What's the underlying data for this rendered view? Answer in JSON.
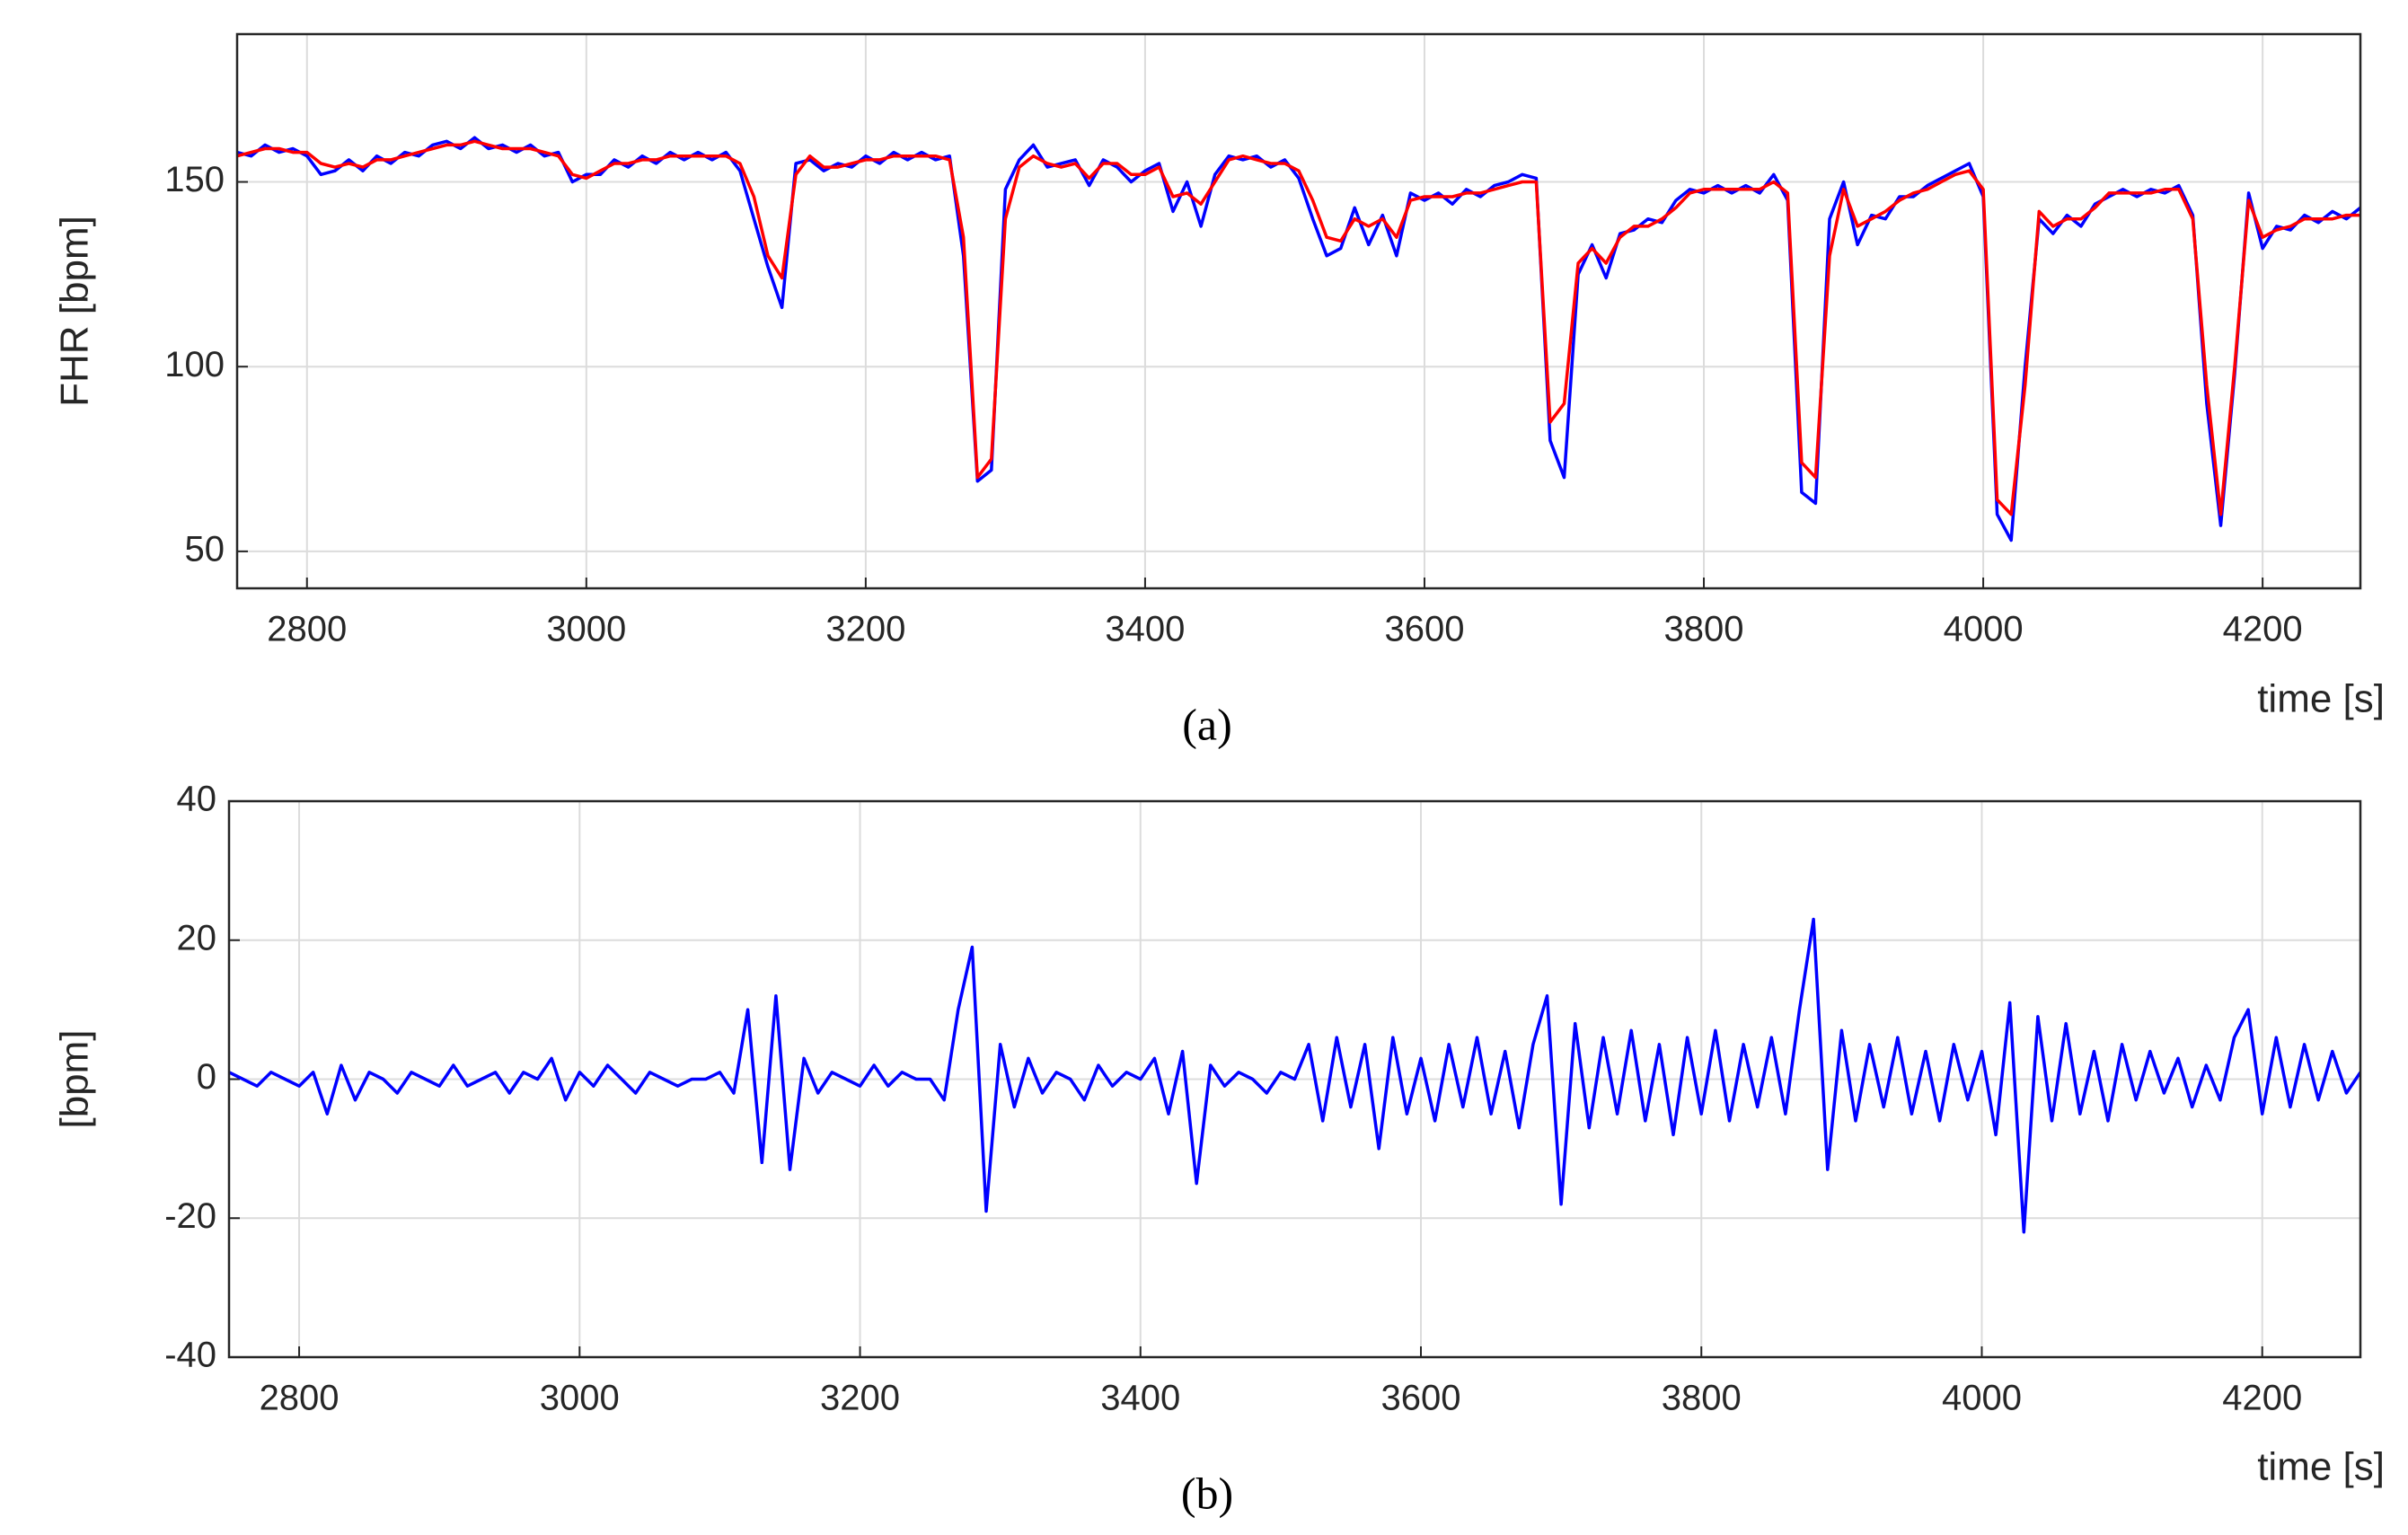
{
  "chart_data": [
    {
      "type": "line",
      "ylabel": "FHR [bpm]",
      "xlabel": "time [s]",
      "caption": "(a)",
      "x": [
        2750,
        2760,
        2770,
        2780,
        2790,
        2800,
        2810,
        2820,
        2830,
        2840,
        2850,
        2860,
        2870,
        2880,
        2890,
        2900,
        2910,
        2920,
        2930,
        2940,
        2950,
        2960,
        2970,
        2980,
        2990,
        3000,
        3010,
        3020,
        3030,
        3040,
        3050,
        3060,
        3070,
        3080,
        3090,
        3100,
        3110,
        3120,
        3130,
        3140,
        3150,
        3160,
        3170,
        3180,
        3190,
        3200,
        3210,
        3220,
        3230,
        3240,
        3250,
        3260,
        3270,
        3280,
        3290,
        3300,
        3310,
        3320,
        3330,
        3340,
        3350,
        3360,
        3370,
        3380,
        3390,
        3400,
        3410,
        3420,
        3430,
        3440,
        3450,
        3460,
        3470,
        3480,
        3490,
        3500,
        3510,
        3520,
        3530,
        3540,
        3550,
        3560,
        3570,
        3580,
        3590,
        3600,
        3610,
        3620,
        3630,
        3640,
        3650,
        3660,
        3670,
        3680,
        3690,
        3700,
        3710,
        3720,
        3730,
        3740,
        3750,
        3760,
        3770,
        3780,
        3790,
        3800,
        3810,
        3820,
        3830,
        3840,
        3850,
        3860,
        3870,
        3880,
        3890,
        3900,
        3910,
        3920,
        3930,
        3940,
        3950,
        3960,
        3970,
        3980,
        3990,
        4000,
        4010,
        4020,
        4030,
        4040,
        4050,
        4060,
        4070,
        4080,
        4090,
        4100,
        4110,
        4120,
        4130,
        4140,
        4150,
        4160,
        4170,
        4180,
        4190,
        4200,
        4210,
        4220,
        4230,
        4240,
        4250,
        4260,
        4270
      ],
      "series": [
        {
          "color": "#0000ff",
          "values": [
            158,
            157,
            160,
            158,
            159,
            157,
            152,
            153,
            156,
            153,
            157,
            155,
            158,
            157,
            160,
            161,
            159,
            162,
            159,
            160,
            158,
            160,
            157,
            158,
            150,
            152,
            152,
            156,
            154,
            157,
            155,
            158,
            156,
            158,
            156,
            158,
            153,
            140,
            127,
            116,
            155,
            156,
            153,
            155,
            154,
            157,
            155,
            158,
            156,
            158,
            156,
            157,
            130,
            69,
            72,
            148,
            156,
            160,
            154,
            155,
            156,
            149,
            156,
            154,
            150,
            153,
            155,
            142,
            150,
            138,
            152,
            157,
            156,
            157,
            154,
            156,
            151,
            140,
            130,
            132,
            143,
            133,
            141,
            130,
            147,
            145,
            147,
            144,
            148,
            146,
            149,
            150,
            152,
            151,
            80,
            70,
            125,
            133,
            124,
            136,
            137,
            140,
            139,
            145,
            148,
            147,
            149,
            147,
            149,
            147,
            152,
            145,
            66,
            63,
            140,
            150,
            133,
            141,
            140,
            146,
            146,
            149,
            151,
            153,
            155,
            146,
            60,
            53,
            100,
            140,
            136,
            141,
            138,
            144,
            146,
            148,
            146,
            148,
            147,
            149,
            141,
            90,
            57,
            98,
            147,
            132,
            138,
            137,
            141,
            139,
            142,
            140,
            143
          ]
        },
        {
          "color": "#ff0000",
          "values": [
            157,
            158,
            159,
            159,
            158,
            158,
            155,
            154,
            155,
            154,
            156,
            156,
            157,
            158,
            159,
            160,
            160,
            161,
            160,
            159,
            159,
            159,
            158,
            157,
            152,
            151,
            153,
            155,
            155,
            156,
            156,
            157,
            157,
            157,
            157,
            157,
            155,
            146,
            130,
            124,
            152,
            157,
            154,
            154,
            155,
            156,
            156,
            157,
            157,
            157,
            157,
            156,
            135,
            70,
            75,
            140,
            154,
            157,
            155,
            154,
            155,
            151,
            155,
            155,
            152,
            152,
            154,
            146,
            147,
            144,
            150,
            156,
            157,
            156,
            155,
            155,
            153,
            145,
            135,
            134,
            140,
            138,
            140,
            135,
            145,
            146,
            146,
            146,
            147,
            147,
            148,
            149,
            150,
            150,
            85,
            90,
            128,
            132,
            128,
            135,
            138,
            138,
            140,
            143,
            147,
            148,
            148,
            148,
            148,
            148,
            150,
            147,
            74,
            70,
            130,
            148,
            138,
            140,
            142,
            145,
            147,
            148,
            150,
            152,
            153,
            148,
            64,
            60,
            95,
            142,
            138,
            140,
            140,
            143,
            147,
            147,
            147,
            147,
            148,
            148,
            140,
            95,
            60,
            100,
            145,
            135,
            137,
            138,
            140,
            140,
            140,
            141,
            141
          ]
        }
      ],
      "xlim": [
        2750,
        4270
      ],
      "xticks": [
        2800,
        3000,
        3200,
        3400,
        3600,
        3800,
        4000,
        4200
      ],
      "ylim": [
        40,
        190
      ],
      "yticks": [
        50,
        100,
        150
      ],
      "grid": true
    },
    {
      "type": "line",
      "ylabel": "[bpm]",
      "xlabel": "time [s]",
      "caption": "(b)",
      "x": [
        2750,
        2760,
        2770,
        2780,
        2790,
        2800,
        2810,
        2820,
        2830,
        2840,
        2850,
        2860,
        2870,
        2880,
        2890,
        2900,
        2910,
        2920,
        2930,
        2940,
        2950,
        2960,
        2970,
        2980,
        2990,
        3000,
        3010,
        3020,
        3030,
        3040,
        3050,
        3060,
        3070,
        3080,
        3090,
        3100,
        3110,
        3120,
        3130,
        3140,
        3150,
        3160,
        3170,
        3180,
        3190,
        3200,
        3210,
        3220,
        3230,
        3240,
        3250,
        3260,
        3270,
        3280,
        3290,
        3300,
        3310,
        3320,
        3330,
        3340,
        3350,
        3360,
        3370,
        3380,
        3390,
        3400,
        3410,
        3420,
        3430,
        3440,
        3450,
        3460,
        3470,
        3480,
        3490,
        3500,
        3510,
        3520,
        3530,
        3540,
        3550,
        3560,
        3570,
        3580,
        3590,
        3600,
        3610,
        3620,
        3630,
        3640,
        3650,
        3660,
        3670,
        3680,
        3690,
        3700,
        3710,
        3720,
        3730,
        3740,
        3750,
        3760,
        3770,
        3780,
        3790,
        3800,
        3810,
        3820,
        3830,
        3840,
        3850,
        3860,
        3870,
        3880,
        3890,
        3900,
        3910,
        3920,
        3930,
        3940,
        3950,
        3960,
        3970,
        3980,
        3990,
        4000,
        4010,
        4020,
        4030,
        4040,
        4050,
        4060,
        4070,
        4080,
        4090,
        4100,
        4110,
        4120,
        4130,
        4140,
        4150,
        4160,
        4170,
        4180,
        4190,
        4200,
        4210,
        4220,
        4230,
        4240,
        4250,
        4260,
        4270
      ],
      "series": [
        {
          "color": "#0000ff",
          "values": [
            1,
            0,
            -1,
            1,
            0,
            -1,
            1,
            -5,
            2,
            -3,
            1,
            0,
            -2,
            1,
            0,
            -1,
            2,
            -1,
            0,
            1,
            -2,
            1,
            0,
            3,
            -3,
            1,
            -1,
            2,
            0,
            -2,
            1,
            0,
            -1,
            0,
            0,
            1,
            -2,
            10,
            -12,
            12,
            -13,
            3,
            -2,
            1,
            0,
            -1,
            2,
            -1,
            1,
            0,
            0,
            -3,
            10,
            19,
            -19,
            5,
            -4,
            3,
            -2,
            1,
            0,
            -3,
            2,
            -1,
            1,
            0,
            3,
            -5,
            4,
            -15,
            2,
            -1,
            1,
            0,
            -2,
            1,
            0,
            5,
            -6,
            6,
            -4,
            5,
            -10,
            6,
            -5,
            3,
            -6,
            5,
            -4,
            6,
            -5,
            4,
            -7,
            5,
            12,
            -18,
            8,
            -7,
            6,
            -5,
            7,
            -6,
            5,
            -8,
            6,
            -5,
            7,
            -6,
            5,
            -4,
            6,
            -5,
            10,
            23,
            -13,
            7,
            -6,
            5,
            -4,
            6,
            -5,
            4,
            -6,
            5,
            -3,
            4,
            -8,
            11,
            -22,
            9,
            -6,
            8,
            -5,
            4,
            -6,
            5,
            -3,
            4,
            -2,
            3,
            -4,
            2,
            -3,
            6,
            10,
            -5,
            6,
            -4,
            5,
            -3,
            4,
            -2,
            1
          ]
        }
      ],
      "xlim": [
        2750,
        4270
      ],
      "xticks": [
        2800,
        3000,
        3200,
        3400,
        3600,
        3800,
        4000,
        4200
      ],
      "ylim": [
        -40,
        40
      ],
      "yticks": [
        -40,
        -20,
        0,
        20,
        40
      ],
      "grid": true
    }
  ]
}
